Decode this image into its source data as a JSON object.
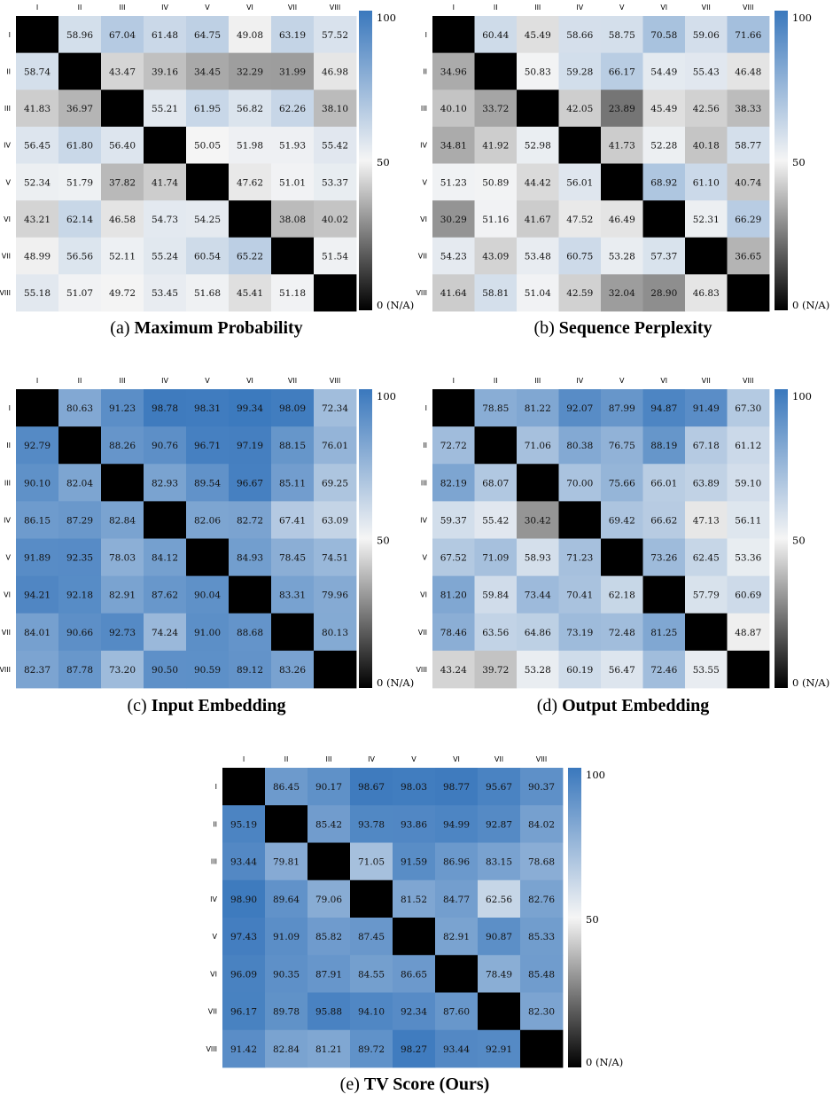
{
  "colorbar": {
    "max_label": "100",
    "mid_label": "50",
    "min_label": "0 (N/A)",
    "colors": {
      "low": "#000000",
      "mid": "#f5f5f5",
      "high": "#3a78bd"
    }
  },
  "chart_data": [
    {
      "type": "heatmap",
      "caption_prefix": "(a)",
      "title": "Maximum Probability",
      "x_labels": [
        "I",
        "II",
        "III",
        "IV",
        "V",
        "VI",
        "VII",
        "VIII"
      ],
      "y_labels": [
        "I",
        "II",
        "III",
        "IV",
        "V",
        "VI",
        "VII",
        "VIII"
      ],
      "zlim": [
        0,
        100
      ],
      "diagonal": "N/A",
      "values": [
        [
          null,
          58.96,
          67.04,
          61.48,
          64.75,
          49.08,
          63.19,
          57.52
        ],
        [
          58.74,
          null,
          43.47,
          39.16,
          34.45,
          32.29,
          31.99,
          46.98
        ],
        [
          41.83,
          36.97,
          null,
          55.21,
          61.95,
          56.82,
          62.26,
          38.1
        ],
        [
          56.45,
          61.8,
          56.4,
          null,
          50.05,
          51.98,
          51.93,
          55.42
        ],
        [
          52.34,
          51.79,
          37.82,
          41.74,
          null,
          47.62,
          51.01,
          53.37
        ],
        [
          43.21,
          62.14,
          46.58,
          54.73,
          54.25,
          null,
          38.08,
          40.02
        ],
        [
          48.99,
          56.56,
          52.11,
          55.24,
          60.54,
          65.22,
          null,
          51.54
        ],
        [
          55.18,
          51.07,
          49.72,
          53.45,
          51.68,
          45.41,
          51.18,
          null
        ]
      ]
    },
    {
      "type": "heatmap",
      "caption_prefix": "(b)",
      "title": "Sequence Perplexity",
      "x_labels": [
        "I",
        "II",
        "III",
        "IV",
        "V",
        "VI",
        "VII",
        "VIII"
      ],
      "y_labels": [
        "I",
        "II",
        "III",
        "IV",
        "V",
        "VI",
        "VII",
        "VIII"
      ],
      "zlim": [
        0,
        100
      ],
      "diagonal": "N/A",
      "values": [
        [
          null,
          60.44,
          45.49,
          58.66,
          58.75,
          70.58,
          59.06,
          71.66
        ],
        [
          34.96,
          null,
          50.83,
          59.28,
          66.17,
          54.49,
          55.43,
          46.48
        ],
        [
          40.1,
          33.72,
          null,
          42.05,
          23.89,
          45.49,
          42.56,
          38.33
        ],
        [
          34.81,
          41.92,
          52.98,
          null,
          41.73,
          52.28,
          40.18,
          58.77
        ],
        [
          51.23,
          50.89,
          44.42,
          56.01,
          null,
          68.92,
          61.1,
          40.74
        ],
        [
          30.29,
          51.16,
          41.67,
          47.52,
          46.49,
          null,
          52.31,
          66.29
        ],
        [
          54.23,
          43.09,
          53.48,
          60.75,
          53.28,
          57.37,
          null,
          36.65
        ],
        [
          41.64,
          58.81,
          51.04,
          42.59,
          32.04,
          28.9,
          46.83,
          null
        ]
      ]
    },
    {
      "type": "heatmap",
      "caption_prefix": "(c)",
      "title": "Input Embedding",
      "x_labels": [
        "I",
        "II",
        "III",
        "IV",
        "V",
        "VI",
        "VII",
        "VIII"
      ],
      "y_labels": [
        "I",
        "II",
        "III",
        "IV",
        "V",
        "VI",
        "VII",
        "VIII"
      ],
      "zlim": [
        0,
        100
      ],
      "diagonal": "N/A",
      "values": [
        [
          null,
          80.63,
          91.23,
          98.78,
          98.31,
          99.34,
          98.09,
          72.34
        ],
        [
          92.79,
          null,
          88.26,
          90.76,
          96.71,
          97.19,
          88.15,
          76.01
        ],
        [
          90.1,
          82.04,
          null,
          82.93,
          89.54,
          96.67,
          85.11,
          69.25
        ],
        [
          86.15,
          87.29,
          82.84,
          null,
          82.06,
          82.72,
          67.41,
          63.09
        ],
        [
          91.89,
          92.35,
          78.03,
          84.12,
          null,
          84.93,
          78.45,
          74.51
        ],
        [
          94.21,
          92.18,
          82.91,
          87.62,
          90.04,
          null,
          83.31,
          79.96
        ],
        [
          84.01,
          90.66,
          92.73,
          74.24,
          91.0,
          88.68,
          null,
          80.13
        ],
        [
          82.37,
          87.78,
          73.2,
          90.5,
          90.59,
          89.12,
          83.26,
          null
        ]
      ]
    },
    {
      "type": "heatmap",
      "caption_prefix": "(d)",
      "title": "Output Embedding",
      "x_labels": [
        "I",
        "II",
        "III",
        "IV",
        "V",
        "VI",
        "VII",
        "VIII"
      ],
      "y_labels": [
        "I",
        "II",
        "III",
        "IV",
        "V",
        "VI",
        "VII",
        "VIII"
      ],
      "zlim": [
        0,
        100
      ],
      "diagonal": "N/A",
      "values": [
        [
          null,
          78.85,
          81.22,
          92.07,
          87.99,
          94.87,
          91.49,
          67.3
        ],
        [
          72.72,
          null,
          71.06,
          80.38,
          76.75,
          88.19,
          67.18,
          61.12
        ],
        [
          82.19,
          68.07,
          null,
          70.0,
          75.66,
          66.01,
          63.89,
          59.1
        ],
        [
          59.37,
          55.42,
          30.42,
          null,
          69.42,
          66.62,
          47.13,
          56.11
        ],
        [
          67.52,
          71.09,
          58.93,
          71.23,
          null,
          73.26,
          62.45,
          53.36
        ],
        [
          81.2,
          59.84,
          73.44,
          70.41,
          62.18,
          null,
          57.79,
          60.69
        ],
        [
          78.46,
          63.56,
          64.86,
          73.19,
          72.48,
          81.25,
          null,
          48.87
        ],
        [
          43.24,
          39.72,
          53.28,
          60.19,
          56.47,
          72.46,
          53.55,
          null
        ]
      ]
    },
    {
      "type": "heatmap",
      "caption_prefix": "(e)",
      "title": "TV Score (Ours)",
      "x_labels": [
        "I",
        "II",
        "III",
        "IV",
        "V",
        "VI",
        "VII",
        "VIII"
      ],
      "y_labels": [
        "I",
        "II",
        "III",
        "IV",
        "V",
        "VI",
        "VII",
        "VIII"
      ],
      "zlim": [
        0,
        100
      ],
      "diagonal": "N/A",
      "values": [
        [
          null,
          86.45,
          90.17,
          98.67,
          98.03,
          98.77,
          95.67,
          90.37
        ],
        [
          95.19,
          null,
          85.42,
          93.78,
          93.86,
          94.99,
          92.87,
          84.02
        ],
        [
          93.44,
          79.81,
          null,
          71.05,
          91.59,
          86.96,
          83.15,
          78.68
        ],
        [
          98.9,
          89.64,
          79.06,
          null,
          81.52,
          84.77,
          62.56,
          82.76
        ],
        [
          97.43,
          91.09,
          85.82,
          87.45,
          null,
          82.91,
          90.87,
          85.33
        ],
        [
          96.09,
          90.35,
          87.91,
          84.55,
          86.65,
          null,
          78.49,
          85.48
        ],
        [
          96.17,
          89.78,
          95.88,
          94.1,
          92.34,
          87.6,
          null,
          82.3
        ],
        [
          91.42,
          82.84,
          81.21,
          89.72,
          98.27,
          93.44,
          92.91,
          null
        ]
      ]
    }
  ]
}
